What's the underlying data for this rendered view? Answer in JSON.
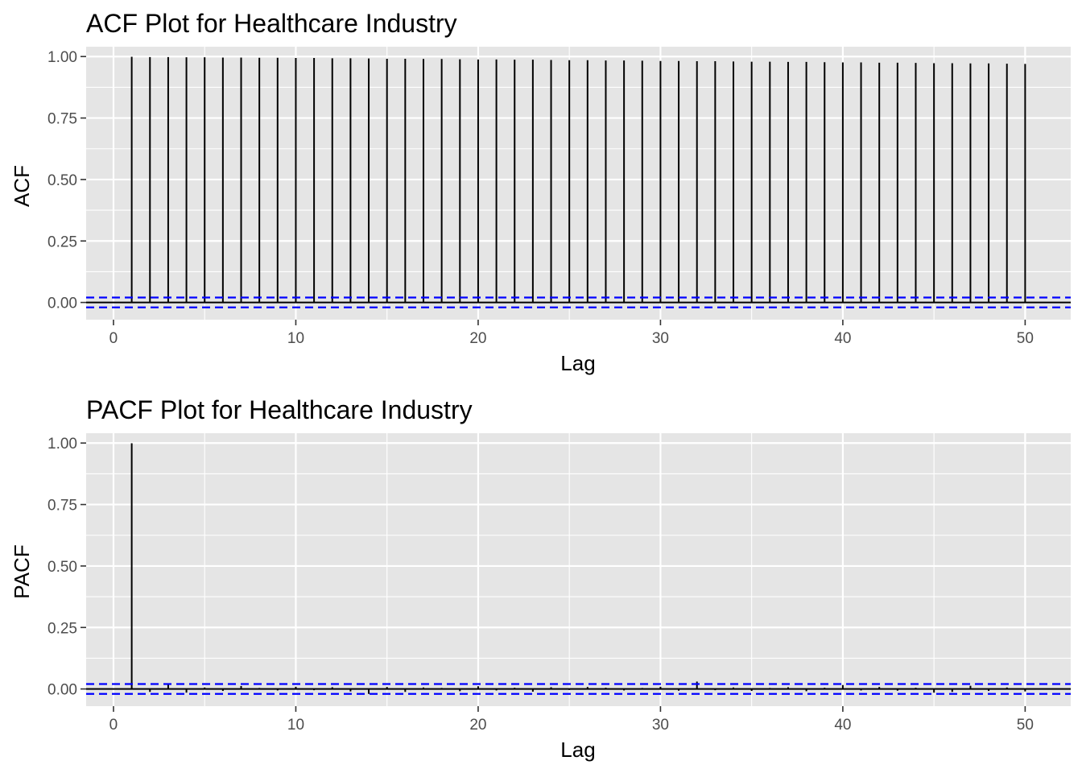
{
  "chart_data": [
    {
      "type": "bar",
      "subtype": "acf-stem",
      "title": "ACF Plot for Healthcare Industry",
      "xlabel": "Lag",
      "ylabel": "ACF",
      "xlim": [
        -1.5,
        52.5
      ],
      "ylim": [
        -0.07,
        1.04
      ],
      "x_ticks": [
        0,
        10,
        20,
        30,
        40,
        50
      ],
      "y_ticks": [
        0.0,
        0.25,
        0.5,
        0.75,
        1.0
      ],
      "y_tick_labels": [
        "0.00",
        "0.25",
        "0.50",
        "0.75",
        "1.00"
      ],
      "grid": true,
      "colors": {
        "panel": "#e5e5e5",
        "grid": "#ffffff",
        "stem": "#000000",
        "ci": "#0000ff",
        "zero": "#000000"
      },
      "ci": [
        -0.02,
        0.02
      ],
      "lags": [
        1,
        2,
        3,
        4,
        5,
        6,
        7,
        8,
        9,
        10,
        11,
        12,
        13,
        14,
        15,
        16,
        17,
        18,
        19,
        20,
        21,
        22,
        23,
        24,
        25,
        26,
        27,
        28,
        29,
        30,
        31,
        32,
        33,
        34,
        35,
        36,
        37,
        38,
        39,
        40,
        41,
        42,
        43,
        44,
        45,
        46,
        47,
        48,
        49,
        50
      ],
      "values": [
        0.999,
        0.998,
        0.998,
        0.997,
        0.997,
        0.996,
        0.996,
        0.995,
        0.995,
        0.994,
        0.994,
        0.993,
        0.993,
        0.992,
        0.991,
        0.991,
        0.99,
        0.99,
        0.989,
        0.988,
        0.988,
        0.987,
        0.987,
        0.986,
        0.985,
        0.985,
        0.984,
        0.984,
        0.983,
        0.982,
        0.982,
        0.981,
        0.981,
        0.98,
        0.979,
        0.979,
        0.978,
        0.978,
        0.977,
        0.976,
        0.976,
        0.975,
        0.975,
        0.974,
        0.973,
        0.973,
        0.972,
        0.972,
        0.971,
        0.97
      ]
    },
    {
      "type": "bar",
      "subtype": "pacf-stem",
      "title": "PACF Plot for Healthcare Industry",
      "xlabel": "Lag",
      "ylabel": "PACF",
      "xlim": [
        -1.5,
        52.5
      ],
      "ylim": [
        -0.07,
        1.04
      ],
      "x_ticks": [
        0,
        10,
        20,
        30,
        40,
        50
      ],
      "y_ticks": [
        0.0,
        0.25,
        0.5,
        0.75,
        1.0
      ],
      "y_tick_labels": [
        "0.00",
        "0.25",
        "0.50",
        "0.75",
        "1.00"
      ],
      "grid": true,
      "colors": {
        "panel": "#e5e5e5",
        "grid": "#ffffff",
        "stem": "#000000",
        "ci": "#0000ff",
        "zero": "#000000"
      },
      "ci": [
        -0.02,
        0.02
      ],
      "lags": [
        1,
        2,
        3,
        4,
        5,
        6,
        7,
        8,
        9,
        10,
        11,
        12,
        13,
        14,
        15,
        16,
        17,
        18,
        19,
        20,
        21,
        22,
        23,
        24,
        25,
        26,
        27,
        28,
        29,
        30,
        31,
        32,
        33,
        34,
        35,
        36,
        37,
        38,
        39,
        40,
        41,
        42,
        43,
        44,
        45,
        46,
        47,
        48,
        49,
        50
      ],
      "values": [
        0.999,
        -0.012,
        0.02,
        -0.015,
        0.006,
        -0.008,
        0.012,
        0.004,
        -0.006,
        0.009,
        -0.005,
        0.007,
        -0.01,
        -0.02,
        0.008,
        -0.012,
        0.006,
        0.004,
        -0.009,
        0.011,
        -0.006,
        0.005,
        -0.011,
        0.007,
        -0.004,
        0.008,
        0.005,
        -0.006,
        0.004,
        0.009,
        -0.007,
        0.03,
        -0.005,
        0.006,
        -0.008,
        0.004,
        0.007,
        -0.009,
        0.005,
        0.016,
        -0.006,
        0.008,
        -0.007,
        0.005,
        -0.015,
        -0.012,
        0.013,
        -0.008,
        0.006,
        -0.01
      ]
    }
  ]
}
